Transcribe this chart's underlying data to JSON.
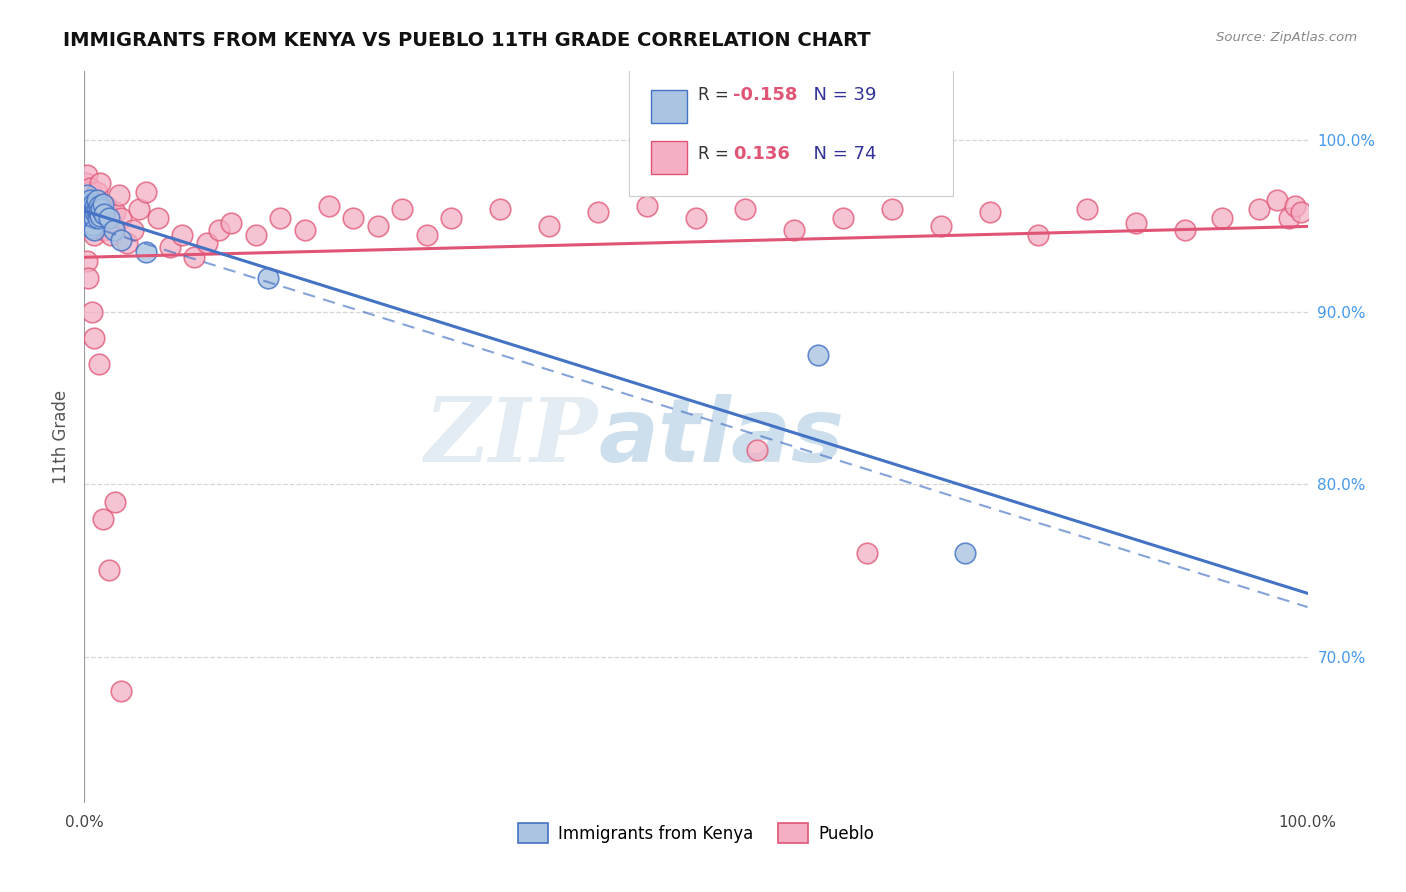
{
  "title": "IMMIGRANTS FROM KENYA VS PUEBLO 11TH GRADE CORRELATION CHART",
  "source_text": "Source: ZipAtlas.com",
  "ylabel": "11th Grade",
  "ylabel_right_labels": [
    "100.0%",
    "90.0%",
    "80.0%",
    "70.0%"
  ],
  "ylabel_right_values": [
    1.0,
    0.9,
    0.8,
    0.7
  ],
  "xlim": [
    0.0,
    1.0
  ],
  "ylim": [
    0.615,
    1.04
  ],
  "legend_blue_r": "-0.158",
  "legend_blue_n": "39",
  "legend_pink_r": "0.136",
  "legend_pink_n": "74",
  "legend_label_blue": "Immigrants from Kenya",
  "legend_label_pink": "Pueblo",
  "blue_color": "#aac4e2",
  "blue_line_color": "#4472c4",
  "pink_color": "#f4afc4",
  "pink_line_color": "#e05575",
  "watermark_zip": "ZIP",
  "watermark_atlas": "atlas",
  "blue_scatter_x": [
    0.001,
    0.002,
    0.002,
    0.003,
    0.003,
    0.003,
    0.004,
    0.004,
    0.004,
    0.005,
    0.005,
    0.005,
    0.006,
    0.006,
    0.006,
    0.007,
    0.007,
    0.007,
    0.008,
    0.008,
    0.008,
    0.009,
    0.009,
    0.01,
    0.01,
    0.011,
    0.012,
    0.012,
    0.013,
    0.014,
    0.015,
    0.016,
    0.02,
    0.024,
    0.03,
    0.05,
    0.15,
    0.6,
    0.72
  ],
  "blue_scatter_y": [
    0.96,
    0.968,
    0.963,
    0.957,
    0.952,
    0.958,
    0.962,
    0.955,
    0.95,
    0.965,
    0.959,
    0.953,
    0.961,
    0.956,
    0.949,
    0.963,
    0.957,
    0.951,
    0.96,
    0.955,
    0.948,
    0.962,
    0.958,
    0.965,
    0.959,
    0.955,
    0.962,
    0.958,
    0.956,
    0.96,
    0.963,
    0.957,
    0.955,
    0.948,
    0.942,
    0.935,
    0.92,
    0.875,
    0.76
  ],
  "pink_scatter_x": [
    0.001,
    0.002,
    0.002,
    0.003,
    0.004,
    0.005,
    0.005,
    0.006,
    0.007,
    0.008,
    0.009,
    0.01,
    0.012,
    0.013,
    0.015,
    0.016,
    0.018,
    0.02,
    0.022,
    0.025,
    0.028,
    0.03,
    0.035,
    0.04,
    0.045,
    0.05,
    0.06,
    0.07,
    0.08,
    0.09,
    0.1,
    0.11,
    0.12,
    0.14,
    0.16,
    0.18,
    0.2,
    0.22,
    0.24,
    0.26,
    0.28,
    0.3,
    0.34,
    0.38,
    0.42,
    0.46,
    0.5,
    0.54,
    0.58,
    0.62,
    0.66,
    0.7,
    0.74,
    0.78,
    0.82,
    0.86,
    0.9,
    0.93,
    0.96,
    0.975,
    0.985,
    0.99,
    0.995,
    0.002,
    0.003,
    0.006,
    0.008,
    0.012,
    0.015,
    0.02,
    0.025,
    0.03,
    0.55,
    0.64
  ],
  "pink_scatter_y": [
    0.975,
    0.968,
    0.98,
    0.97,
    0.96,
    0.95,
    0.972,
    0.963,
    0.958,
    0.945,
    0.965,
    0.97,
    0.96,
    0.975,
    0.955,
    0.948,
    0.962,
    0.95,
    0.945,
    0.958,
    0.968,
    0.955,
    0.94,
    0.948,
    0.96,
    0.97,
    0.955,
    0.938,
    0.945,
    0.932,
    0.94,
    0.948,
    0.952,
    0.945,
    0.955,
    0.948,
    0.962,
    0.955,
    0.95,
    0.96,
    0.945,
    0.955,
    0.96,
    0.95,
    0.958,
    0.962,
    0.955,
    0.96,
    0.948,
    0.955,
    0.96,
    0.95,
    0.958,
    0.945,
    0.96,
    0.952,
    0.948,
    0.955,
    0.96,
    0.965,
    0.955,
    0.962,
    0.958,
    0.93,
    0.92,
    0.9,
    0.885,
    0.87,
    0.78,
    0.75,
    0.79,
    0.68,
    0.82,
    0.76
  ]
}
